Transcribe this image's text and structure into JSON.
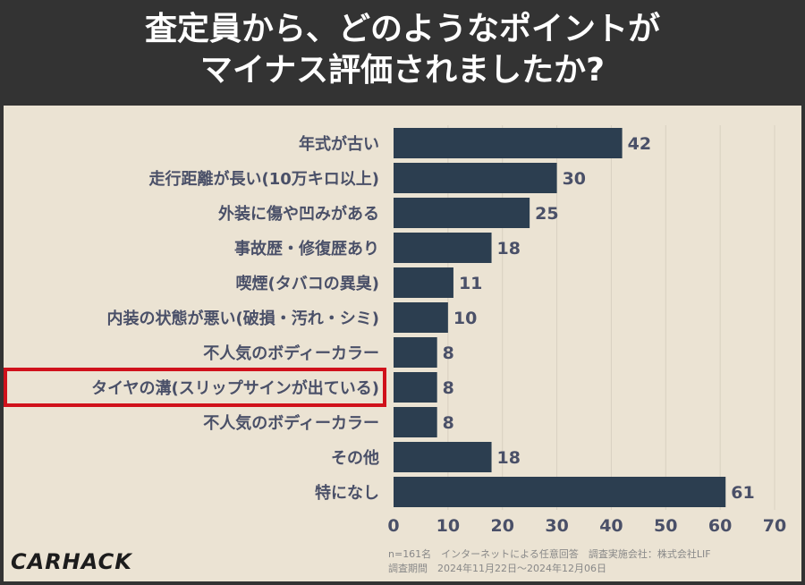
{
  "header": {
    "line1": "査定員から、どのようなポイントが",
    "line2": "マイナス評価されましたか?"
  },
  "footer": {
    "line1": "n=161名　インターネットによる任意回答　調査実施会社：株式会社LIF",
    "line2": "調査期間　2024年11月22日〜2024年12月06日"
  },
  "logo": "CARHACK",
  "chart_data": {
    "type": "bar",
    "orientation": "horizontal",
    "categories": [
      "年式が古い",
      "走行距離が長い(10万キロ以上)",
      "外装に傷や凹みがある",
      "事故歴・修復歴あり",
      "喫煙(タバコの異臭)",
      "内装の状態が悪い(破損・汚れ・シミ)",
      "不人気のボディーカラー",
      "タイヤの溝(スリップサインが出ている)",
      "不人気のボディーカラー",
      "その他",
      "特になし"
    ],
    "values": [
      42,
      30,
      25,
      18,
      11,
      10,
      8,
      8,
      8,
      18,
      61
    ],
    "highlighted_category_index": 7,
    "xlim": [
      0,
      70
    ],
    "xticks": [
      0,
      10,
      20,
      30,
      40,
      50,
      60,
      70
    ],
    "grid": true,
    "colors": {
      "bar": "#2c3e50",
      "label": "#4a5068",
      "highlight_box": "#d0111b"
    }
  }
}
